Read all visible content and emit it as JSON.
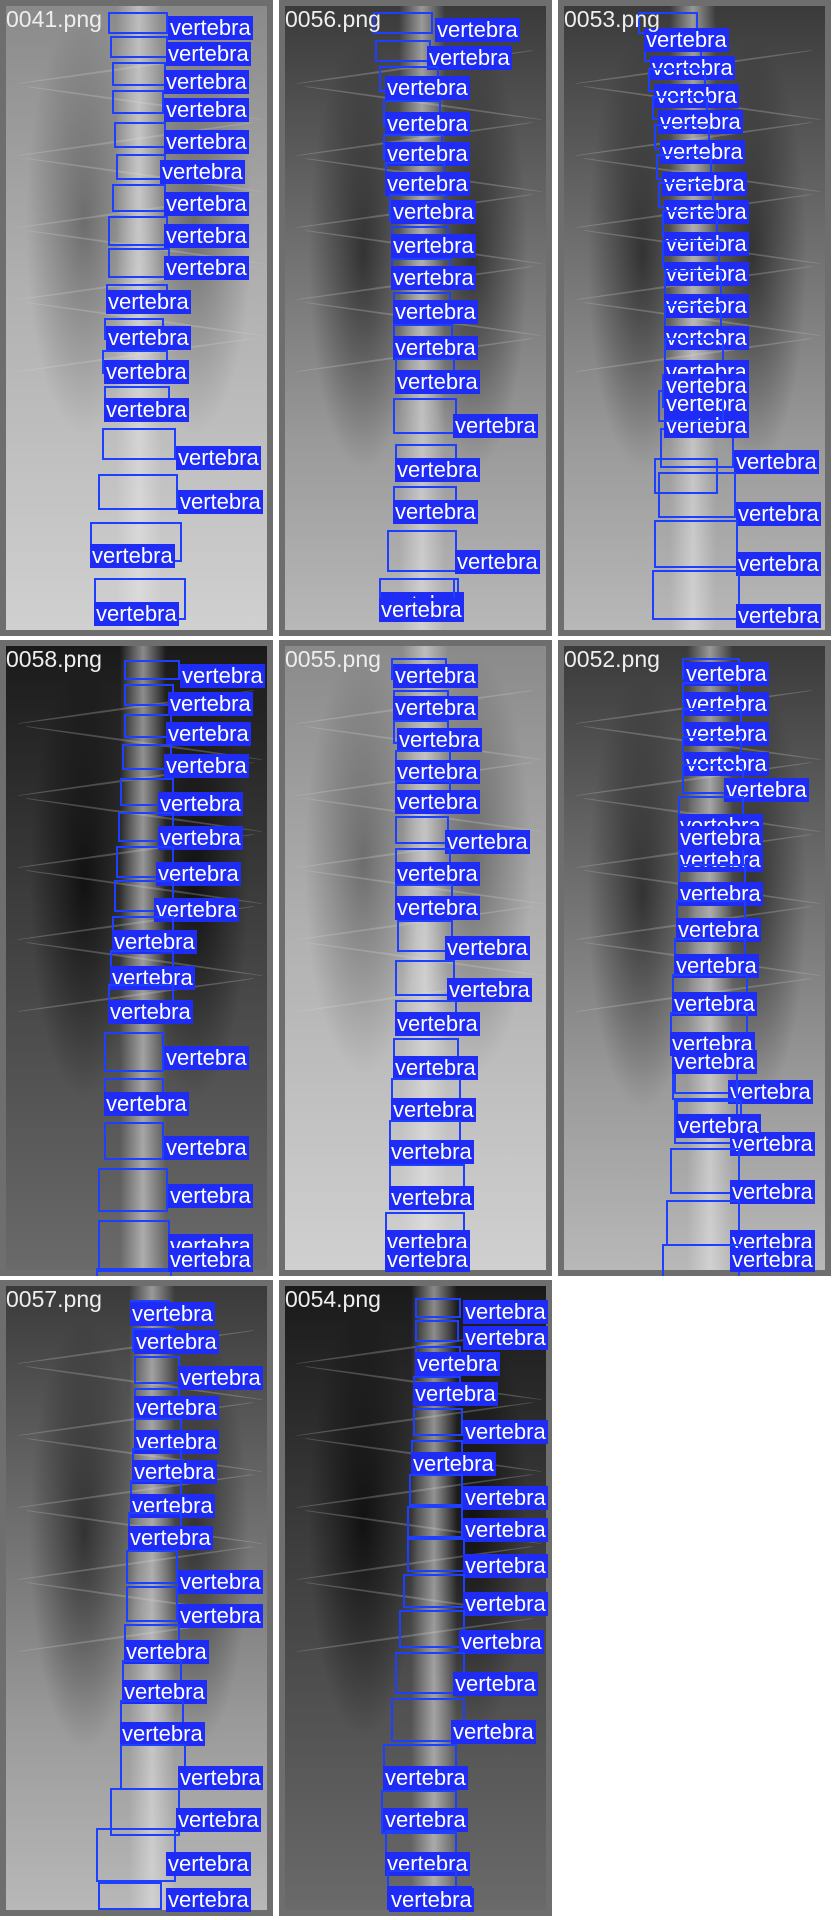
{
  "label_text": "vertebra",
  "colors": {
    "box": "#1f3fff",
    "label_bg": "#1e2cf5",
    "label_text": "#ffffff",
    "frame": "#6e6e6e"
  },
  "panels": [
    {
      "filename": "0041.png",
      "detections": 18
    },
    {
      "filename": "0056.png",
      "detections": 19
    },
    {
      "filename": "0053.png",
      "detections": 20
    },
    {
      "filename": "0058.png",
      "detections": 19
    },
    {
      "filename": "0055.png",
      "detections": 19
    },
    {
      "filename": "0052.png",
      "detections": 20
    },
    {
      "filename": "0057.png",
      "detections": 17
    },
    {
      "filename": "0054.png",
      "detections": 18
    }
  ]
}
